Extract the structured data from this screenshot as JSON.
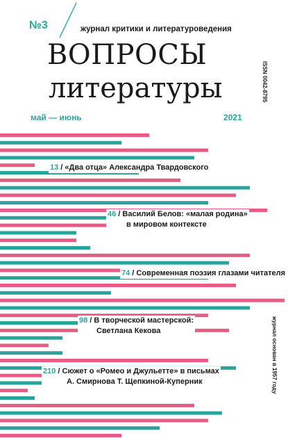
{
  "header": {
    "issue": "№3",
    "subtitle": "журнал критики и литературоведения",
    "issn": "ISSN 0042-8795"
  },
  "title": {
    "line1": "ВОПРОСЫ",
    "line2": "литературы"
  },
  "date": {
    "months": "май — июнь",
    "year": "2021"
  },
  "toc": [
    {
      "page": "13",
      "text": "«Два отца» Александра Твардовского"
    },
    {
      "page": "46",
      "text": "Василий Белов: «малая родина»",
      "text2": "в мировом контексте"
    },
    {
      "page": "74",
      "text": "Современная поэзия глазами читателя"
    },
    {
      "page": "98",
      "text": "В творческой мастерской:",
      "text2": "Светлана Кекова"
    },
    {
      "page": "210",
      "text": "Сюжет о «Ромео и Джульетте» в письмах",
      "text2": "А. Смирнова Т. Щепкиной-Куперник"
    }
  ],
  "side": {
    "founded": "журнал основан в 1957 году"
  },
  "colors": {
    "pink": "#e85b85",
    "teal": "#2aa39b",
    "ink": "#1a1a1a"
  }
}
